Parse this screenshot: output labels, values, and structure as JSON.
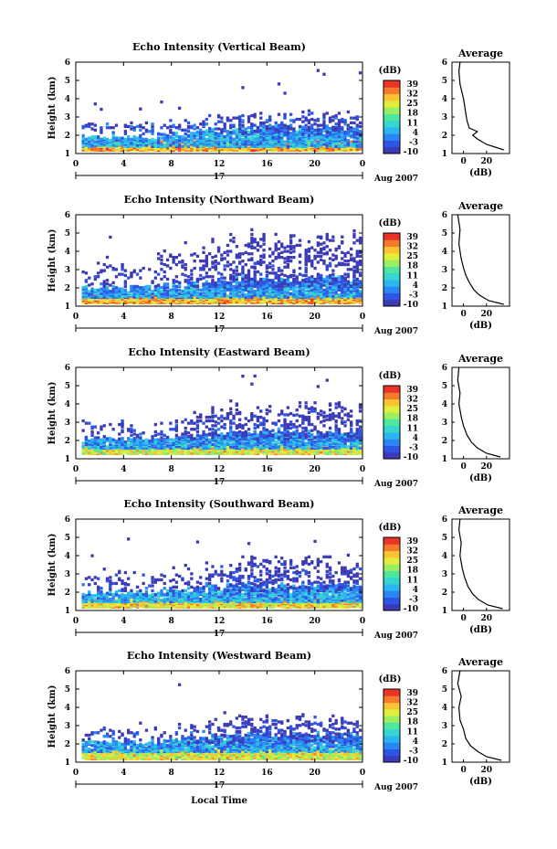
{
  "colors": {
    "colorbar": [
      "#3b3bb8",
      "#2f55e6",
      "#2a86f2",
      "#2cb6f0",
      "#35d6d0",
      "#4fe6a0",
      "#9cee62",
      "#e2ee3c",
      "#fbc234",
      "#f57a2b",
      "#ea3426"
    ],
    "line": "#000000",
    "background": "#ffffff"
  },
  "shared": {
    "time_ticks": [
      "0",
      "4",
      "8",
      "12",
      "16",
      "20",
      "0"
    ],
    "height_ticks": [
      "1",
      "2",
      "3",
      "4",
      "5",
      "6"
    ],
    "db_ticks": [
      "39",
      "32",
      "25",
      "18",
      "11",
      "4",
      "-3",
      "-10"
    ],
    "db_label": "(dB)",
    "ylabel": "Height (km)",
    "day_label": "17",
    "month_label": "Aug 2007",
    "xlabel": "Local Time",
    "avg_title": "Average",
    "avg_xlabel": "(dB)",
    "avg_xticks": [
      "0",
      "20"
    ]
  },
  "chart_data": [
    {
      "type": "heatmap",
      "title": "Echo Intensity (Vertical Beam)",
      "xlabel": "",
      "ylabel": "Height (km)",
      "x_range_hours": [
        0,
        24
      ],
      "y_range_km": [
        1,
        6
      ],
      "c_range_db": [
        -10,
        39
      ],
      "echo_layers": [
        {
          "height_km": [
            1.1,
            1.6
          ],
          "db": 25,
          "note_band": "hot"
        },
        {
          "height_km": [
            1.3,
            2.5
          ],
          "db": 5
        },
        {
          "height_km": [
            2.0,
            3.3
          ],
          "db": -5
        }
      ],
      "average_profile": {
        "x_db": [
          35,
          20,
          12,
          8,
          12,
          5,
          3,
          2,
          1,
          0,
          -3,
          -4,
          -3
        ],
        "y_km": [
          1.2,
          1.5,
          1.8,
          2.0,
          2.2,
          2.4,
          2.8,
          3.2,
          3.6,
          4.0,
          4.8,
          5.5,
          6.0
        ],
        "xlim": [
          -10,
          40
        ]
      }
    },
    {
      "type": "heatmap",
      "title": "Echo Intensity (Northward Beam)",
      "xlabel": "",
      "ylabel": "Height (km)",
      "x_range_hours": [
        0,
        24
      ],
      "y_range_km": [
        1,
        6
      ],
      "c_range_db": [
        -10,
        39
      ],
      "echo_layers": [
        {
          "height_km": [
            1.1,
            1.5
          ],
          "db": 25
        },
        {
          "height_km": [
            1.4,
            2.6
          ],
          "db": 4
        },
        {
          "height_km": [
            2.0,
            5.2
          ],
          "db": -8
        }
      ],
      "average_profile": {
        "x_db": [
          35,
          22,
          14,
          9,
          5,
          2,
          0,
          -2,
          -4,
          -3,
          -5
        ],
        "y_km": [
          1.1,
          1.3,
          1.6,
          1.9,
          2.3,
          2.7,
          3.1,
          3.6,
          4.4,
          5.2,
          6.0
        ],
        "xlim": [
          -10,
          40
        ]
      }
    },
    {
      "type": "heatmap",
      "title": "Echo Intensity (Eastward Beam)",
      "xlabel": "",
      "ylabel": "Height (km)",
      "x_range_hours": [
        0,
        24
      ],
      "y_range_km": [
        1,
        6
      ],
      "c_range_db": [
        -10,
        39
      ],
      "echo_layers": [
        {
          "height_km": [
            1.2,
            1.6
          ],
          "db": 20
        },
        {
          "height_km": [
            1.5,
            2.6
          ],
          "db": 4
        },
        {
          "height_km": [
            2.0,
            4.1
          ],
          "db": -6
        }
      ],
      "average_profile": {
        "x_db": [
          32,
          20,
          12,
          7,
          3,
          0,
          -2,
          -4,
          -3,
          -5,
          -4
        ],
        "y_km": [
          1.1,
          1.3,
          1.6,
          1.9,
          2.3,
          2.8,
          3.3,
          4.0,
          4.6,
          5.3,
          6.0
        ],
        "xlim": [
          -10,
          40
        ]
      }
    },
    {
      "type": "heatmap",
      "title": "Echo Intensity (Southward Beam)",
      "xlabel": "",
      "ylabel": "Height (km)",
      "x_range_hours": [
        0,
        24
      ],
      "y_range_km": [
        1,
        6
      ],
      "c_range_db": [
        -10,
        39
      ],
      "echo_layers": [
        {
          "height_km": [
            1.1,
            1.5
          ],
          "db": 22
        },
        {
          "height_km": [
            1.4,
            2.5
          ],
          "db": 5
        },
        {
          "height_km": [
            2.0,
            4.0
          ],
          "db": -7
        }
      ],
      "average_profile": {
        "x_db": [
          34,
          21,
          13,
          8,
          4,
          1,
          -1,
          -3,
          -2,
          -4,
          -3
        ],
        "y_km": [
          1.1,
          1.3,
          1.6,
          1.9,
          2.3,
          2.8,
          3.3,
          4.0,
          4.7,
          5.4,
          6.0
        ],
        "xlim": [
          -10,
          40
        ]
      }
    },
    {
      "type": "heatmap",
      "title": "Echo Intensity (Westward Beam)",
      "xlabel": "Local Time",
      "ylabel": "Height (km)",
      "x_range_hours": [
        0,
        24
      ],
      "y_range_km": [
        1,
        6
      ],
      "c_range_db": [
        -10,
        39
      ],
      "echo_layers": [
        {
          "height_km": [
            1.1,
            1.6
          ],
          "db": 20
        },
        {
          "height_km": [
            1.5,
            2.6
          ],
          "db": 4
        },
        {
          "height_km": [
            2.0,
            3.6
          ],
          "db": -6
        }
      ],
      "average_profile": {
        "x_db": [
          33,
          20,
          12,
          6,
          2,
          0,
          -3,
          -4,
          -2,
          -5,
          -3
        ],
        "y_km": [
          1.1,
          1.3,
          1.6,
          1.9,
          2.3,
          2.8,
          3.3,
          4.0,
          4.6,
          5.3,
          6.0
        ],
        "xlim": [
          -10,
          40
        ]
      }
    }
  ]
}
